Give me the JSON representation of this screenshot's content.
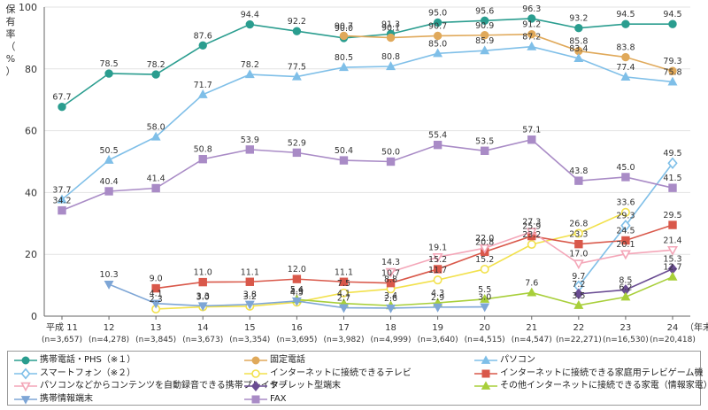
{
  "chart_data": {
    "type": "line",
    "ylabel": "保有率（%）",
    "ylim": [
      0,
      100
    ],
    "yticks": [
      0,
      20,
      40,
      60,
      80,
      100
    ],
    "x_unit": "（年末）",
    "categories": [
      {
        "year": "平成 11",
        "n": "(n=3,657)"
      },
      {
        "year": "12",
        "n": "(n=4,278)"
      },
      {
        "year": "13",
        "n": "(n=3,845)"
      },
      {
        "year": "14",
        "n": "(n=3,673)"
      },
      {
        "year": "15",
        "n": "(n=3,354)"
      },
      {
        "year": "16",
        "n": "(n=3,695)"
      },
      {
        "year": "17",
        "n": "(n=3,982)"
      },
      {
        "year": "18",
        "n": "(n=4,999)"
      },
      {
        "year": "19",
        "n": "(n=3,640)"
      },
      {
        "year": "20",
        "n": "(n=4,515)"
      },
      {
        "year": "21",
        "n": "(n=4,547)"
      },
      {
        "year": "22",
        "n": "(n=22,271)"
      },
      {
        "year": "23",
        "n": "(n=16,530)"
      },
      {
        "year": "24",
        "n": "(n=20,418)"
      }
    ],
    "series": [
      {
        "name": "携帯電話・PHS（※１）",
        "color": "#2a9d8f",
        "marker": "circle",
        "values": [
          67.7,
          78.5,
          78.2,
          87.6,
          94.4,
          92.2,
          90.0,
          91.3,
          95.0,
          95.6,
          96.3,
          93.2,
          94.5,
          94.5
        ],
        "labels": [
          "67.7",
          "78.5",
          "78.2",
          "87.6",
          "94.4",
          "92.2",
          "90.0",
          "91.3",
          "95.0",
          "95.6",
          "96.3",
          "93.2",
          "94.5",
          "94.5"
        ]
      },
      {
        "name": "固定電話",
        "color": "#e0a95a",
        "marker": "circle",
        "values": [
          null,
          null,
          null,
          null,
          null,
          null,
          90.7,
          90.1,
          90.7,
          90.9,
          91.2,
          85.8,
          83.8,
          79.3
        ],
        "labels": [
          null,
          null,
          null,
          null,
          null,
          null,
          "90.7",
          "90.1",
          "90.7",
          "90.9",
          "91.2",
          "85.8",
          "83.8",
          "79.3"
        ]
      },
      {
        "name": "パソコン",
        "color": "#7fbfe8",
        "marker": "triangle",
        "values": [
          37.7,
          50.5,
          58.0,
          71.7,
          78.2,
          77.5,
          80.5,
          80.8,
          85.0,
          85.9,
          87.2,
          83.4,
          77.4,
          75.8
        ],
        "labels": [
          "37.7",
          "50.5",
          "58.0",
          "71.7",
          "78.2",
          "77.5",
          "80.5",
          "80.8",
          "85.0",
          "85.9",
          "87.2",
          "83.4",
          "77.4",
          "75.8"
        ]
      },
      {
        "name": "スマートフォン（※２）",
        "color": "#7fbfe8",
        "marker": "diamond-open",
        "values": [
          null,
          null,
          null,
          null,
          null,
          null,
          null,
          null,
          null,
          null,
          null,
          9.7,
          29.3,
          49.5
        ],
        "labels": [
          null,
          null,
          null,
          null,
          null,
          null,
          null,
          null,
          null,
          null,
          null,
          "9.7",
          "29.3",
          "49.5"
        ]
      },
      {
        "name": "FAX",
        "color": "#a98bc6",
        "marker": "square",
        "values": [
          34.2,
          40.4,
          41.4,
          50.8,
          53.9,
          52.9,
          50.4,
          50.0,
          55.4,
          53.5,
          57.1,
          43.8,
          45.0,
          41.5
        ],
        "labels": [
          "34.2",
          "40.4",
          "41.4",
          "50.8",
          "53.9",
          "52.9",
          "50.4",
          "50.0",
          "55.4",
          "53.5",
          "57.1",
          "43.8",
          "45.0",
          "41.5"
        ]
      },
      {
        "name": "インターネットに接続できるテレビ",
        "color": "#f2e14c",
        "marker": "circle-open",
        "values": [
          null,
          null,
          2.3,
          3.0,
          3.2,
          4.5,
          7.5,
          8.8,
          11.7,
          15.2,
          23.2,
          26.8,
          33.6,
          null
        ],
        "labels": [
          null,
          null,
          "2.3",
          "3.0",
          "3.2",
          "4.5",
          "7.5",
          "8.8",
          "11.7",
          "15.2",
          "23.2",
          "26.8",
          "33.6",
          null
        ]
      },
      {
        "name": "インターネットに接続できる家庭用テレビゲーム機",
        "color": "#d9584a",
        "marker": "square",
        "values": [
          null,
          null,
          9.0,
          11.0,
          11.1,
          12.0,
          11.1,
          10.7,
          15.2,
          20.8,
          25.9,
          23.3,
          24.5,
          29.5
        ],
        "labels": [
          null,
          null,
          "9.0",
          "11.0",
          "11.1",
          "12.0",
          "11.1",
          "10.7",
          "15.2",
          "20.8",
          "25.9",
          "23.3",
          "24.5",
          "29.5"
        ]
      },
      {
        "name": "パソコンなどからコンテンツを自動録音できる携帯プレイヤー",
        "color": "#f4a6b8",
        "marker": "triangle-down-open",
        "values": [
          null,
          null,
          null,
          null,
          null,
          null,
          null,
          14.3,
          19.1,
          22.0,
          27.3,
          17.0,
          20.1,
          21.4
        ],
        "labels": [
          null,
          null,
          null,
          null,
          null,
          null,
          null,
          "14.3",
          "19.1",
          "22.0",
          "27.3",
          "17.0",
          "20.1",
          "21.4"
        ]
      },
      {
        "name": "タブレット型端末",
        "color": "#6a4c93",
        "marker": "diamond",
        "values": [
          null,
          null,
          null,
          null,
          null,
          null,
          null,
          null,
          null,
          null,
          null,
          7.2,
          8.5,
          15.3
        ],
        "labels": [
          null,
          null,
          null,
          null,
          null,
          null,
          null,
          null,
          null,
          null,
          null,
          "7.2",
          "8.5",
          "15.3"
        ]
      },
      {
        "name": "その他インターネットに接続できる家電（情報家電）等",
        "color": "#a8cf3a",
        "marker": "triangle",
        "values": [
          null,
          null,
          null,
          null,
          null,
          5.4,
          4.1,
          3.4,
          4.3,
          5.5,
          7.6,
          3.5,
          6.2,
          12.7
        ],
        "labels": [
          null,
          null,
          null,
          null,
          null,
          "5.4",
          "4.1",
          "3.4",
          "4.3",
          "5.5",
          "7.6",
          "3.5",
          "6.2",
          "12.7"
        ]
      },
      {
        "name": "携帯情報端末",
        "color": "#7ea6d6",
        "marker": "triangle-down",
        "values": [
          null,
          10.3,
          4.1,
          3.3,
          3.8,
          4.9,
          2.7,
          2.6,
          2.9,
          3.0,
          null,
          null,
          null,
          null
        ],
        "labels": [
          null,
          "10.3",
          "4.1",
          "3.3",
          "3.8",
          "4.9",
          "2.7",
          "2.6",
          "2.9",
          "3.0",
          null,
          null,
          null,
          null
        ]
      }
    ],
    "legend": {
      "columns": 3,
      "order": [
        0,
        1,
        2,
        3,
        5,
        6,
        7,
        8,
        9,
        10,
        4
      ]
    }
  }
}
